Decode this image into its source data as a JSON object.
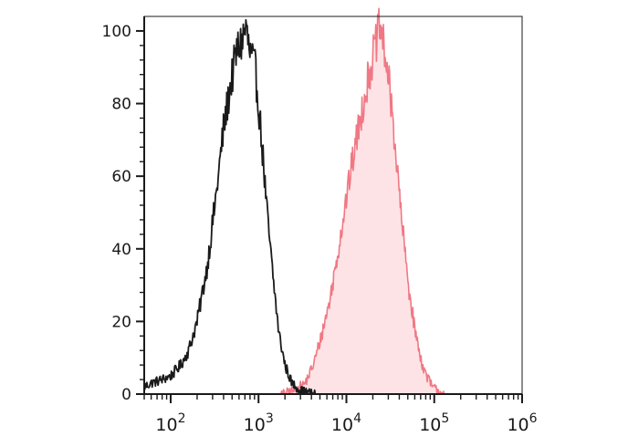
{
  "chart_data": {
    "type": "area",
    "title": "",
    "xlabel": "",
    "ylabel": "",
    "x_scale": "log",
    "xlim": [
      50,
      1000000
    ],
    "ylim": [
      0,
      104
    ],
    "x_ticks": [
      {
        "base": "10",
        "exp": "2",
        "value": 100
      },
      {
        "base": "10",
        "exp": "3",
        "value": 1000
      },
      {
        "base": "10",
        "exp": "4",
        "value": 10000
      },
      {
        "base": "10",
        "exp": "5",
        "value": 100000
      },
      {
        "base": "10",
        "exp": "6",
        "value": 1000000
      }
    ],
    "y_ticks": [
      0,
      20,
      40,
      60,
      80,
      100
    ],
    "grid": false,
    "legend": "none",
    "series": [
      {
        "style": "black outline",
        "color": "#1a1a1a",
        "fill": "none",
        "x": [
          50,
          60,
          80,
          100,
          130,
          160,
          200,
          260,
          330,
          400,
          480,
          560,
          640,
          720,
          790,
          850,
          920,
          1000,
          1100,
          1250,
          1450,
          1700,
          2000,
          2400,
          3000,
          3600,
          4500
        ],
        "y": [
          2,
          3,
          4,
          5,
          8,
          12,
          20,
          35,
          55,
          73,
          85,
          94,
          97,
          101,
          94,
          92,
          89,
          80,
          68,
          50,
          33,
          17,
          8,
          3,
          1,
          0.5,
          0
        ]
      },
      {
        "style": "red outline with light pink fill",
        "color": "#f07884",
        "fill": "#fde3e6",
        "x": [
          1800,
          2500,
          3400,
          4200,
          5200,
          6500,
          8000,
          10000,
          12500,
          15000,
          18000,
          21000,
          24000,
          27000,
          30000,
          34000,
          39000,
          45000,
          52000,
          62000,
          75000,
          95000,
          130000
        ],
        "y": [
          0,
          1,
          3,
          8,
          16,
          26,
          39,
          54,
          68,
          78,
          88,
          95,
          101,
          95,
          87,
          75,
          58,
          42,
          28,
          16,
          7,
          2,
          0
        ]
      }
    ]
  }
}
